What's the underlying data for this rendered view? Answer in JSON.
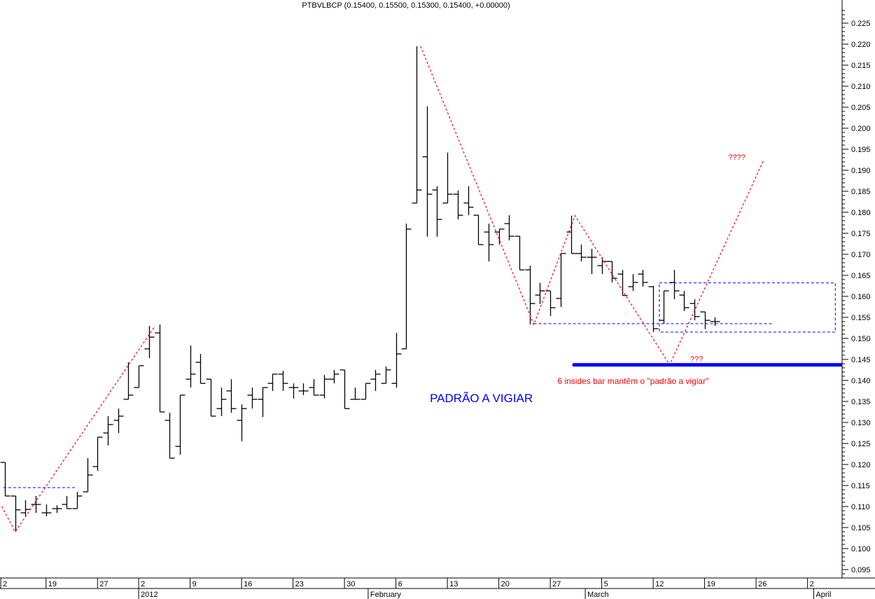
{
  "chart_data": {
    "type": "ohlc",
    "title": "PTBVLBCP (0.15400, 0.15500, 0.15300, 0.15400, +0.00000)",
    "ylim": [
      0.093,
      0.2285
    ],
    "y_ticks": [
      0.095,
      0.1,
      0.105,
      0.11,
      0.115,
      0.12,
      0.125,
      0.13,
      0.135,
      0.14,
      0.145,
      0.15,
      0.155,
      0.16,
      0.165,
      0.17,
      0.175,
      0.18,
      0.185,
      0.19,
      0.195,
      0.2,
      0.205,
      0.21,
      0.215,
      0.22,
      0.225
    ],
    "y_axis_position": "right",
    "grid": false,
    "ohlc_fields": [
      "open",
      "high",
      "low",
      "close"
    ],
    "bars": [
      [
        0.1205,
        0.1205,
        0.1125,
        0.1125
      ],
      [
        0.1125,
        0.1125,
        0.104,
        0.1092
      ],
      [
        0.1085,
        0.1115,
        0.1077,
        0.1093
      ],
      [
        0.1105,
        0.1125,
        0.1085,
        0.1105
      ],
      [
        0.1085,
        0.1105,
        0.1077,
        0.1085
      ],
      [
        0.1095,
        0.1103,
        0.1085,
        0.1095
      ],
      [
        0.1105,
        0.1125,
        0.1095,
        0.1095
      ],
      [
        0.1095,
        0.1135,
        0.1095,
        0.1125
      ],
      [
        0.1135,
        0.1215,
        0.1135,
        0.1175
      ],
      [
        0.1195,
        0.1265,
        0.1185,
        0.1265
      ],
      [
        0.1275,
        0.1315,
        0.1245,
        0.1295
      ],
      [
        0.1305,
        0.1333,
        0.1275,
        0.1315
      ],
      [
        0.1355,
        0.1443,
        0.1355,
        0.1365
      ],
      [
        0.1383,
        0.1435,
        0.1383,
        0.1435
      ],
      [
        0.1475,
        0.153,
        0.1453,
        0.1503
      ],
      [
        0.1513,
        0.1533,
        0.1325,
        0.1325
      ],
      [
        0.1305,
        0.1323,
        0.1215,
        0.1215
      ],
      [
        0.1243,
        0.1365,
        0.1223,
        0.1365
      ],
      [
        0.1403,
        0.1483,
        0.1383,
        0.1415
      ],
      [
        0.1443,
        0.1463,
        0.1393,
        0.1393
      ],
      [
        0.1403,
        0.1403,
        0.1315,
        0.1315
      ],
      [
        0.1333,
        0.1383,
        0.1315,
        0.1355
      ],
      [
        0.1375,
        0.1403,
        0.1323,
        0.1333
      ],
      [
        0.1305,
        0.1343,
        0.1255,
        0.1333
      ],
      [
        0.1365,
        0.1383,
        0.1333,
        0.1355
      ],
      [
        0.1355,
        0.1383,
        0.1313,
        0.1383
      ],
      [
        0.1393,
        0.1415,
        0.1375,
        0.1415
      ],
      [
        0.1415,
        0.1423,
        0.1375,
        0.1393
      ],
      [
        0.1383,
        0.1393,
        0.1357,
        0.1383
      ],
      [
        0.1375,
        0.1393,
        0.1365,
        0.1375
      ],
      [
        0.1383,
        0.1403,
        0.1365,
        0.1365
      ],
      [
        0.1365,
        0.1413,
        0.1357,
        0.1403
      ],
      [
        0.1403,
        0.1425,
        0.1393,
        0.1415
      ],
      [
        0.1425,
        0.1425,
        0.1333,
        0.1333
      ],
      [
        0.1355,
        0.1383,
        0.1355,
        0.1355
      ],
      [
        0.1355,
        0.1393,
        0.1355,
        0.1393
      ],
      [
        0.1403,
        0.1425,
        0.1375,
        0.1415
      ],
      [
        0.1393,
        0.1433,
        0.1393,
        0.1425
      ],
      [
        0.1393,
        0.1513,
        0.1383,
        0.1463
      ],
      [
        0.1475,
        0.1773,
        0.1475,
        0.176
      ],
      [
        0.1822,
        0.2195,
        0.1822,
        0.1853
      ],
      [
        0.1932,
        0.2052,
        0.1742,
        0.1843
      ],
      [
        0.1853,
        0.1862,
        0.1742,
        0.1783
      ],
      [
        0.1822,
        0.1942,
        0.1822,
        0.1843
      ],
      [
        0.1843,
        0.1852,
        0.1783,
        0.1793
      ],
      [
        0.1822,
        0.1862,
        0.1793,
        0.1812
      ],
      [
        0.1793,
        0.1793,
        0.1723,
        0.1723
      ],
      [
        0.1753,
        0.1773,
        0.1683,
        0.1723
      ],
      [
        0.1753,
        0.176,
        0.1723,
        0.176
      ],
      [
        0.1773,
        0.1793,
        0.1733,
        0.1743
      ],
      [
        0.1743,
        0.1743,
        0.1663,
        0.1663
      ],
      [
        0.1663,
        0.1673,
        0.1533,
        0.1583
      ],
      [
        0.1603,
        0.1632,
        0.1582,
        0.1613
      ],
      [
        0.1613,
        0.1613,
        0.1553,
        0.1573
      ],
      [
        0.1595,
        0.1702,
        0.1575,
        0.1702
      ],
      [
        0.1753,
        0.1792,
        0.1702,
        0.1702
      ],
      [
        0.1702,
        0.1723,
        0.1683,
        0.1693
      ],
      [
        0.1693,
        0.1713,
        0.1653,
        0.1693
      ],
      [
        0.1673,
        0.1693,
        0.1653,
        0.1683
      ],
      [
        0.1683,
        0.1683,
        0.1633,
        0.1643
      ],
      [
        0.1653,
        0.1663,
        0.1602,
        0.1602
      ],
      [
        0.1623,
        0.1653,
        0.1613,
        0.1633
      ],
      [
        0.1653,
        0.1663,
        0.1623,
        0.1633
      ],
      [
        0.1623,
        0.1625,
        0.1515,
        0.1523
      ],
      [
        0.1543,
        0.1613,
        0.1535,
        0.1613
      ],
      [
        0.1633,
        0.1663,
        0.1593,
        0.1613
      ],
      [
        0.1603,
        0.1613,
        0.1565,
        0.1573
      ],
      [
        0.1583,
        0.1593,
        0.1543,
        0.1552
      ],
      [
        0.1563,
        0.1563,
        0.1522,
        0.1543
      ],
      [
        0.154,
        0.155,
        0.153,
        0.154
      ]
    ],
    "x_day_ticks": [
      {
        "label": "2",
        "bar": -0.4
      },
      {
        "label": "19",
        "bar": 4
      },
      {
        "label": "27",
        "bar": 9
      },
      {
        "label": "2",
        "bar": 13
      },
      {
        "label": "9",
        "bar": 18
      },
      {
        "label": "16",
        "bar": 23
      },
      {
        "label": "23",
        "bar": 28
      },
      {
        "label": "30",
        "bar": 33
      },
      {
        "label": "6",
        "bar": 38
      },
      {
        "label": "13",
        "bar": 43
      },
      {
        "label": "20",
        "bar": 48
      },
      {
        "label": "27",
        "bar": 53
      },
      {
        "label": "5",
        "bar": 58
      },
      {
        "label": "12",
        "bar": 63
      },
      {
        "label": "19",
        "bar": 68
      },
      {
        "label": "26",
        "bar": 73
      },
      {
        "label": "2",
        "bar": 78
      }
    ],
    "x_month_ticks": [
      {
        "label": "2012",
        "bar": 13
      },
      {
        "label": "February",
        "bar": 35.3
      },
      {
        "label": "March",
        "bar": 56.4
      },
      {
        "label": "April",
        "bar": 78.6
      }
    ],
    "annotations": {
      "red_zigzag_1": [
        [
          -0.3,
          0.11
        ],
        [
          1,
          0.104
        ],
        [
          14.6,
          0.153
        ]
      ],
      "red_zigzag_2": [
        [
          40.4,
          0.2195
        ],
        [
          51.4,
          0.1533
        ],
        [
          55.4,
          0.1792
        ],
        [
          64.6,
          0.1437
        ],
        [
          73.7,
          0.1922
        ]
      ],
      "blue_dashed_levels": [
        {
          "from": -0.14,
          "to": 6.87,
          "price": 0.1145
        },
        {
          "from": 51.4,
          "to": 74.6,
          "price": 0.1535
        }
      ],
      "blue_box": {
        "from": 63.6,
        "to": 80.7,
        "top": 0.1632,
        "bottom": 0.1515
      },
      "blue_support": {
        "from": 55.3,
        "price": 0.1437
      },
      "labels": [
        {
          "text": "????",
          "bar": 70.3,
          "price": 0.1925,
          "color": "#ff0000",
          "size": 11,
          "bold": false
        },
        {
          "text": "???",
          "bar": 66.6,
          "price": 0.1445,
          "color": "#ff0000",
          "size": 11,
          "bold": false
        },
        {
          "text": "6 insides bar mantêm o \"padrão a vigiar\"",
          "bar": 53.7,
          "price": 0.1392,
          "color": "#ff0000",
          "size": 12,
          "bold": false
        },
        {
          "text": "PADRÃO A VIGIAR",
          "bar": 41.3,
          "price": 0.1348,
          "color": "#0000ff",
          "size": 17,
          "bold": false
        }
      ]
    },
    "colors": {
      "bars": "#000000",
      "zigzag": "#ff0000",
      "levels": "#0000ff",
      "support": "#0000ff"
    }
  }
}
